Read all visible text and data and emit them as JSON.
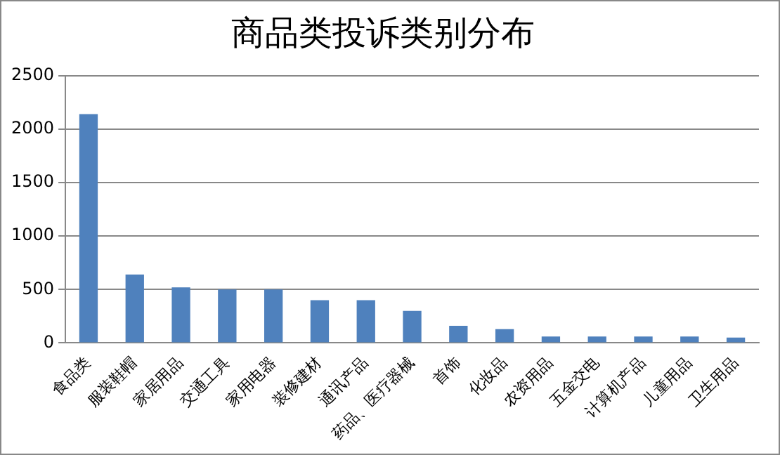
{
  "chart_data": {
    "type": "bar",
    "title": "商品类投诉类别分布",
    "categories": [
      "食品类",
      "服装鞋帽",
      "家居用品",
      "交通工具",
      "家用电器",
      "装修建材",
      "通讯产品",
      "药品、医疗器械",
      "首饰",
      "化妆品",
      "农资用品",
      "五金交电",
      "计算机产品",
      "儿童用品",
      "卫生用品"
    ],
    "values": [
      2140,
      640,
      520,
      500,
      500,
      400,
      400,
      300,
      160,
      130,
      60,
      60,
      60,
      60,
      50
    ],
    "color": "#4f81bd",
    "ylim": [
      0,
      2500
    ],
    "yticks": [
      0,
      500,
      1000,
      1500,
      2000,
      2500
    ],
    "grid": "y",
    "legend": false
  }
}
